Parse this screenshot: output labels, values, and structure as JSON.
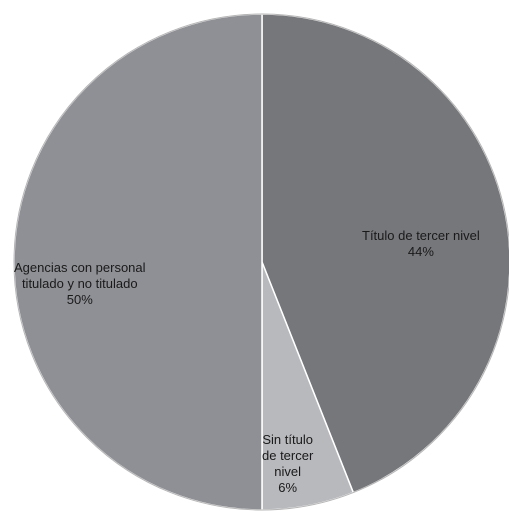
{
  "chart_data": {
    "type": "pie",
    "start_angle_deg": 0,
    "direction": "clockwise",
    "slices": [
      {
        "label": "Título de tercer nivel",
        "value": 44,
        "display": "44%",
        "color": "#76777b"
      },
      {
        "label": "Sin título de tercer nivel",
        "value": 6,
        "display": "6%",
        "color": "#b8b9bd"
      },
      {
        "label": "Agencias con personal titulado y no titulado",
        "value": 50,
        "display": "50%",
        "color": "#8f9095"
      }
    ],
    "slice_labels": [
      [
        "Título de tercer nivel"
      ],
      [
        "Sin título",
        "de tercer",
        "nivel"
      ],
      [
        "Agencias con personal",
        "titulado y no titulado"
      ]
    ]
  }
}
